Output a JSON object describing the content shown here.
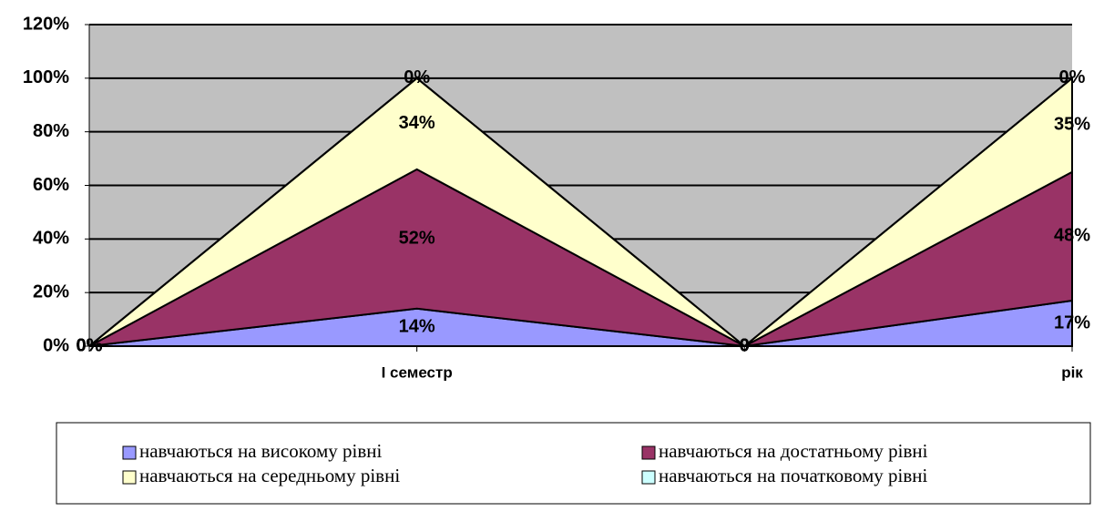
{
  "chart_data": {
    "type": "stacked_area",
    "categories": [
      null,
      "І семестр",
      null,
      "рік"
    ],
    "series": [
      {
        "name": "навчаються на високому рівні",
        "color": "#9999ff",
        "values": [
          0,
          14,
          0,
          17
        ],
        "value_labels": [
          "0%",
          "14%",
          "0",
          "17%"
        ]
      },
      {
        "name": "навчаються на достатньому рівні",
        "color": "#993366",
        "values": [
          0,
          52,
          0,
          48
        ],
        "value_labels": [
          "0%",
          "52%",
          "0",
          "48%"
        ]
      },
      {
        "name": "навчаються на середньому рівні",
        "color": "#ffffcc",
        "values": [
          0,
          34,
          0,
          35
        ],
        "value_labels": [
          "0%",
          "34%",
          "0",
          "35%"
        ]
      },
      {
        "name": "навчаються на початковому рівні",
        "color": "#ccffff",
        "values": [
          0,
          0,
          0,
          0
        ],
        "value_labels": [
          "0%",
          "0%",
          "0",
          "0%"
        ]
      }
    ],
    "ylim": [
      0,
      120
    ],
    "yticks": [
      {
        "value": 0,
        "label": "0%"
      },
      {
        "value": 20,
        "label": "20%"
      },
      {
        "value": 40,
        "label": "40%"
      },
      {
        "value": 60,
        "label": "60%"
      },
      {
        "value": 80,
        "label": "80%"
      },
      {
        "value": 100,
        "label": "100%"
      },
      {
        "value": 120,
        "label": "120%"
      }
    ],
    "grid": true,
    "legend": "bottom"
  }
}
